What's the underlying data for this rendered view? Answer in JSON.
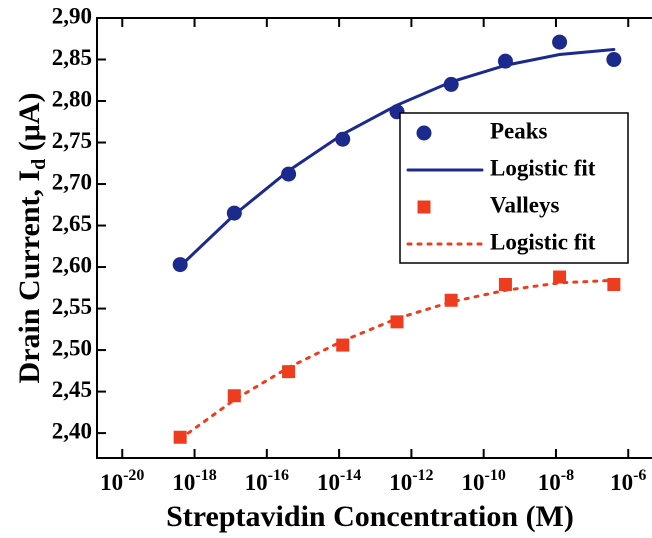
{
  "chart_data": {
    "type": "scatter",
    "xlabel": "Streptavidin Concentration (M)",
    "ylabel": [
      "Drain Current, I",
      "d",
      " (μA)"
    ],
    "xscale": "log",
    "xlim": [
      2e-21,
      4e-06
    ],
    "xticks": [
      {
        "value": 1e-20,
        "label": "10-20"
      },
      {
        "value": 1e-18,
        "label": "10-18"
      },
      {
        "value": 1e-16,
        "label": "10-16"
      },
      {
        "value": 1e-14,
        "label": "10-14"
      },
      {
        "value": 1e-12,
        "label": "10-12"
      },
      {
        "value": 1e-10,
        "label": "10-10"
      },
      {
        "value": 1e-08,
        "label": "10-8"
      },
      {
        "value": 1e-06,
        "label": "10-6"
      }
    ],
    "ylim": [
      2.37,
      2.9
    ],
    "yticks": [
      {
        "value": 2.4,
        "label": "2,40"
      },
      {
        "value": 2.45,
        "label": "2,45"
      },
      {
        "value": 2.5,
        "label": "2,50"
      },
      {
        "value": 2.55,
        "label": "2,55"
      },
      {
        "value": 2.6,
        "label": "2,60"
      },
      {
        "value": 2.65,
        "label": "2,65"
      },
      {
        "value": 2.7,
        "label": "2,70"
      },
      {
        "value": 2.75,
        "label": "2,75"
      },
      {
        "value": 2.8,
        "label": "2,80"
      },
      {
        "value": 2.85,
        "label": "2,85"
      },
      {
        "value": 2.9,
        "label": "2,90"
      }
    ],
    "legend": "upper right",
    "series": [
      {
        "name": "Peaks",
        "kind": "marker",
        "marker": "circle",
        "color": "#1b2a8c",
        "x": [
          4e-19,
          1.26e-17,
          4e-16,
          1.26e-14,
          4e-13,
          1.26e-11,
          4e-10,
          1.26e-08,
          4e-07
        ],
        "values": [
          2.603,
          2.665,
          2.712,
          2.754,
          2.787,
          2.82,
          2.848,
          2.871,
          2.85
        ]
      },
      {
        "name": "Logistic fit",
        "kind": "line",
        "dash": "solid",
        "color": "#1b2a8c",
        "x": [
          4e-19,
          1.26e-17,
          4e-16,
          1.26e-14,
          4e-13,
          1.26e-11,
          4e-10,
          1.26e-08,
          4e-07
        ],
        "values": [
          2.601,
          2.663,
          2.716,
          2.76,
          2.795,
          2.823,
          2.843,
          2.856,
          2.862
        ]
      },
      {
        "name": "Valleys",
        "kind": "marker",
        "marker": "square",
        "color": "#f03c1e",
        "x": [
          4e-19,
          1.26e-17,
          4e-16,
          1.26e-14,
          4e-13,
          1.26e-11,
          4e-10,
          1.26e-08,
          4e-07
        ],
        "values": [
          2.395,
          2.445,
          2.474,
          2.506,
          2.534,
          2.56,
          2.579,
          2.588,
          2.579
        ]
      },
      {
        "name": "Logistic fit",
        "kind": "line",
        "dash": "dotted",
        "color": "#f03c1e",
        "x": [
          4e-19,
          1.26e-17,
          4e-16,
          1.26e-14,
          4e-13,
          1.26e-11,
          4e-10,
          1.26e-08,
          4e-07
        ],
        "values": [
          2.393,
          2.44,
          2.479,
          2.511,
          2.538,
          2.558,
          2.572,
          2.581,
          2.584
        ]
      }
    ]
  }
}
